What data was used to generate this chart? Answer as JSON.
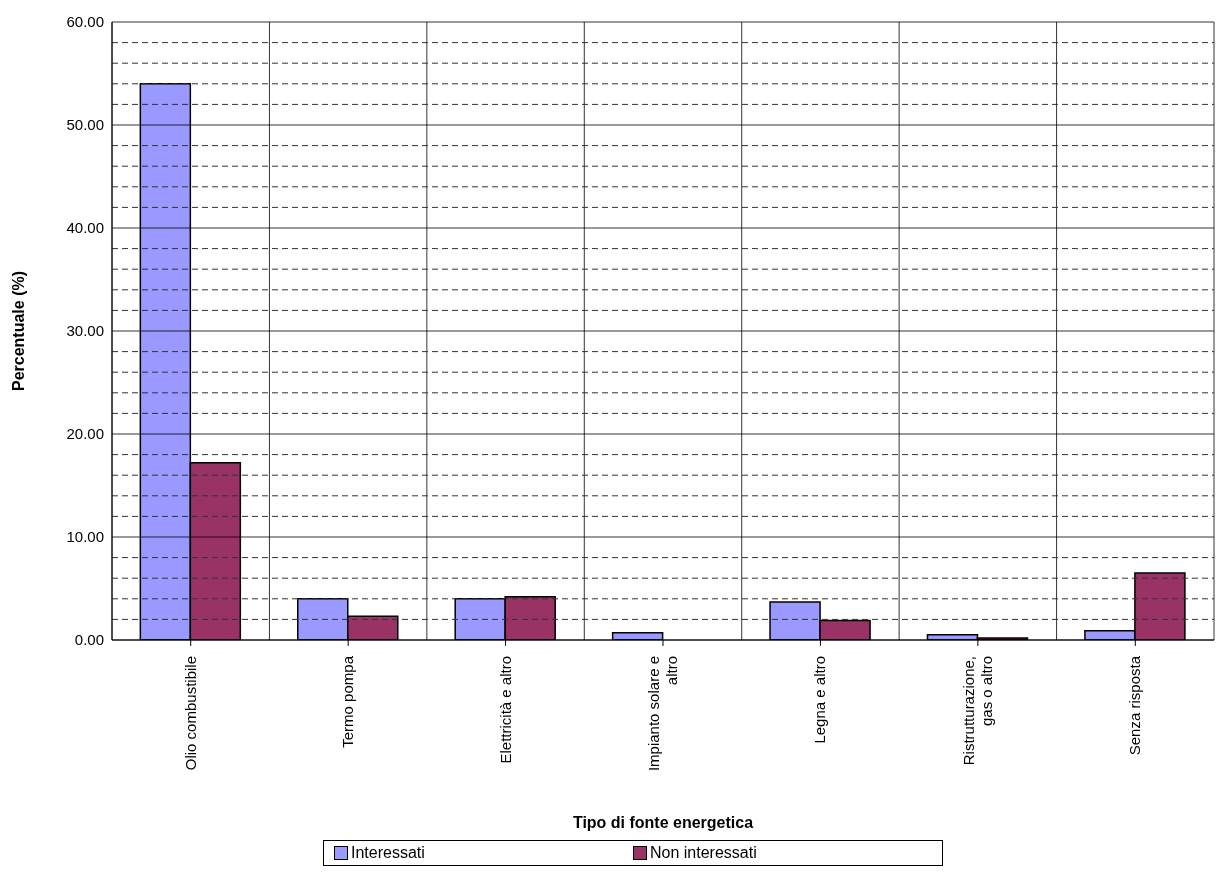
{
  "chart_data": {
    "type": "bar",
    "xlabel": "Tipo di fonte energetica",
    "ylabel": "Percentuale (%)",
    "categories": [
      "Olio combustibile",
      "Termo pompa",
      "Elettricità e altro",
      "Impianto solare e altro",
      "Legna e altro",
      "Ristrutturazione, gas o altro",
      "Senza risposta"
    ],
    "series": [
      {
        "name": "Interessati",
        "color": "#9999ff",
        "values": [
          54.0,
          4.0,
          4.0,
          0.7,
          3.7,
          0.5,
          0.9
        ]
      },
      {
        "name": "Non interessati",
        "color": "#993366",
        "values": [
          17.2,
          2.3,
          4.2,
          0,
          1.9,
          0.2,
          6.5
        ]
      }
    ],
    "ylim": [
      0,
      60
    ],
    "yticks": [
      {
        "value": 0,
        "label": "0.00"
      },
      {
        "value": 2,
        "label": null
      },
      {
        "value": 4,
        "label": null
      },
      {
        "value": 6,
        "label": null
      },
      {
        "value": 8,
        "label": null
      },
      {
        "value": 10,
        "label": "10.00"
      },
      {
        "value": 12,
        "label": null
      },
      {
        "value": 14,
        "label": null
      },
      {
        "value": 16,
        "label": null
      },
      {
        "value": 18,
        "label": null
      },
      {
        "value": 20,
        "label": "20.00"
      },
      {
        "value": 22,
        "label": null
      },
      {
        "value": 24,
        "label": null
      },
      {
        "value": 26,
        "label": null
      },
      {
        "value": 28,
        "label": null
      },
      {
        "value": 30,
        "label": "30.00"
      },
      {
        "value": 32,
        "label": null
      },
      {
        "value": 34,
        "label": null
      },
      {
        "value": 36,
        "label": null
      },
      {
        "value": 38,
        "label": null
      },
      {
        "value": 40,
        "label": "40.00"
      },
      {
        "value": 42,
        "label": null
      },
      {
        "value": 44,
        "label": null
      },
      {
        "value": 46,
        "label": null
      },
      {
        "value": 48,
        "label": null
      },
      {
        "value": 50,
        "label": "50.00"
      },
      {
        "value": 52,
        "label": null
      },
      {
        "value": 54,
        "label": null
      },
      {
        "value": 56,
        "label": null
      },
      {
        "value": 58,
        "label": null
      },
      {
        "value": 60,
        "label": "60.00"
      }
    ],
    "grid": true,
    "legend": "bottom"
  }
}
